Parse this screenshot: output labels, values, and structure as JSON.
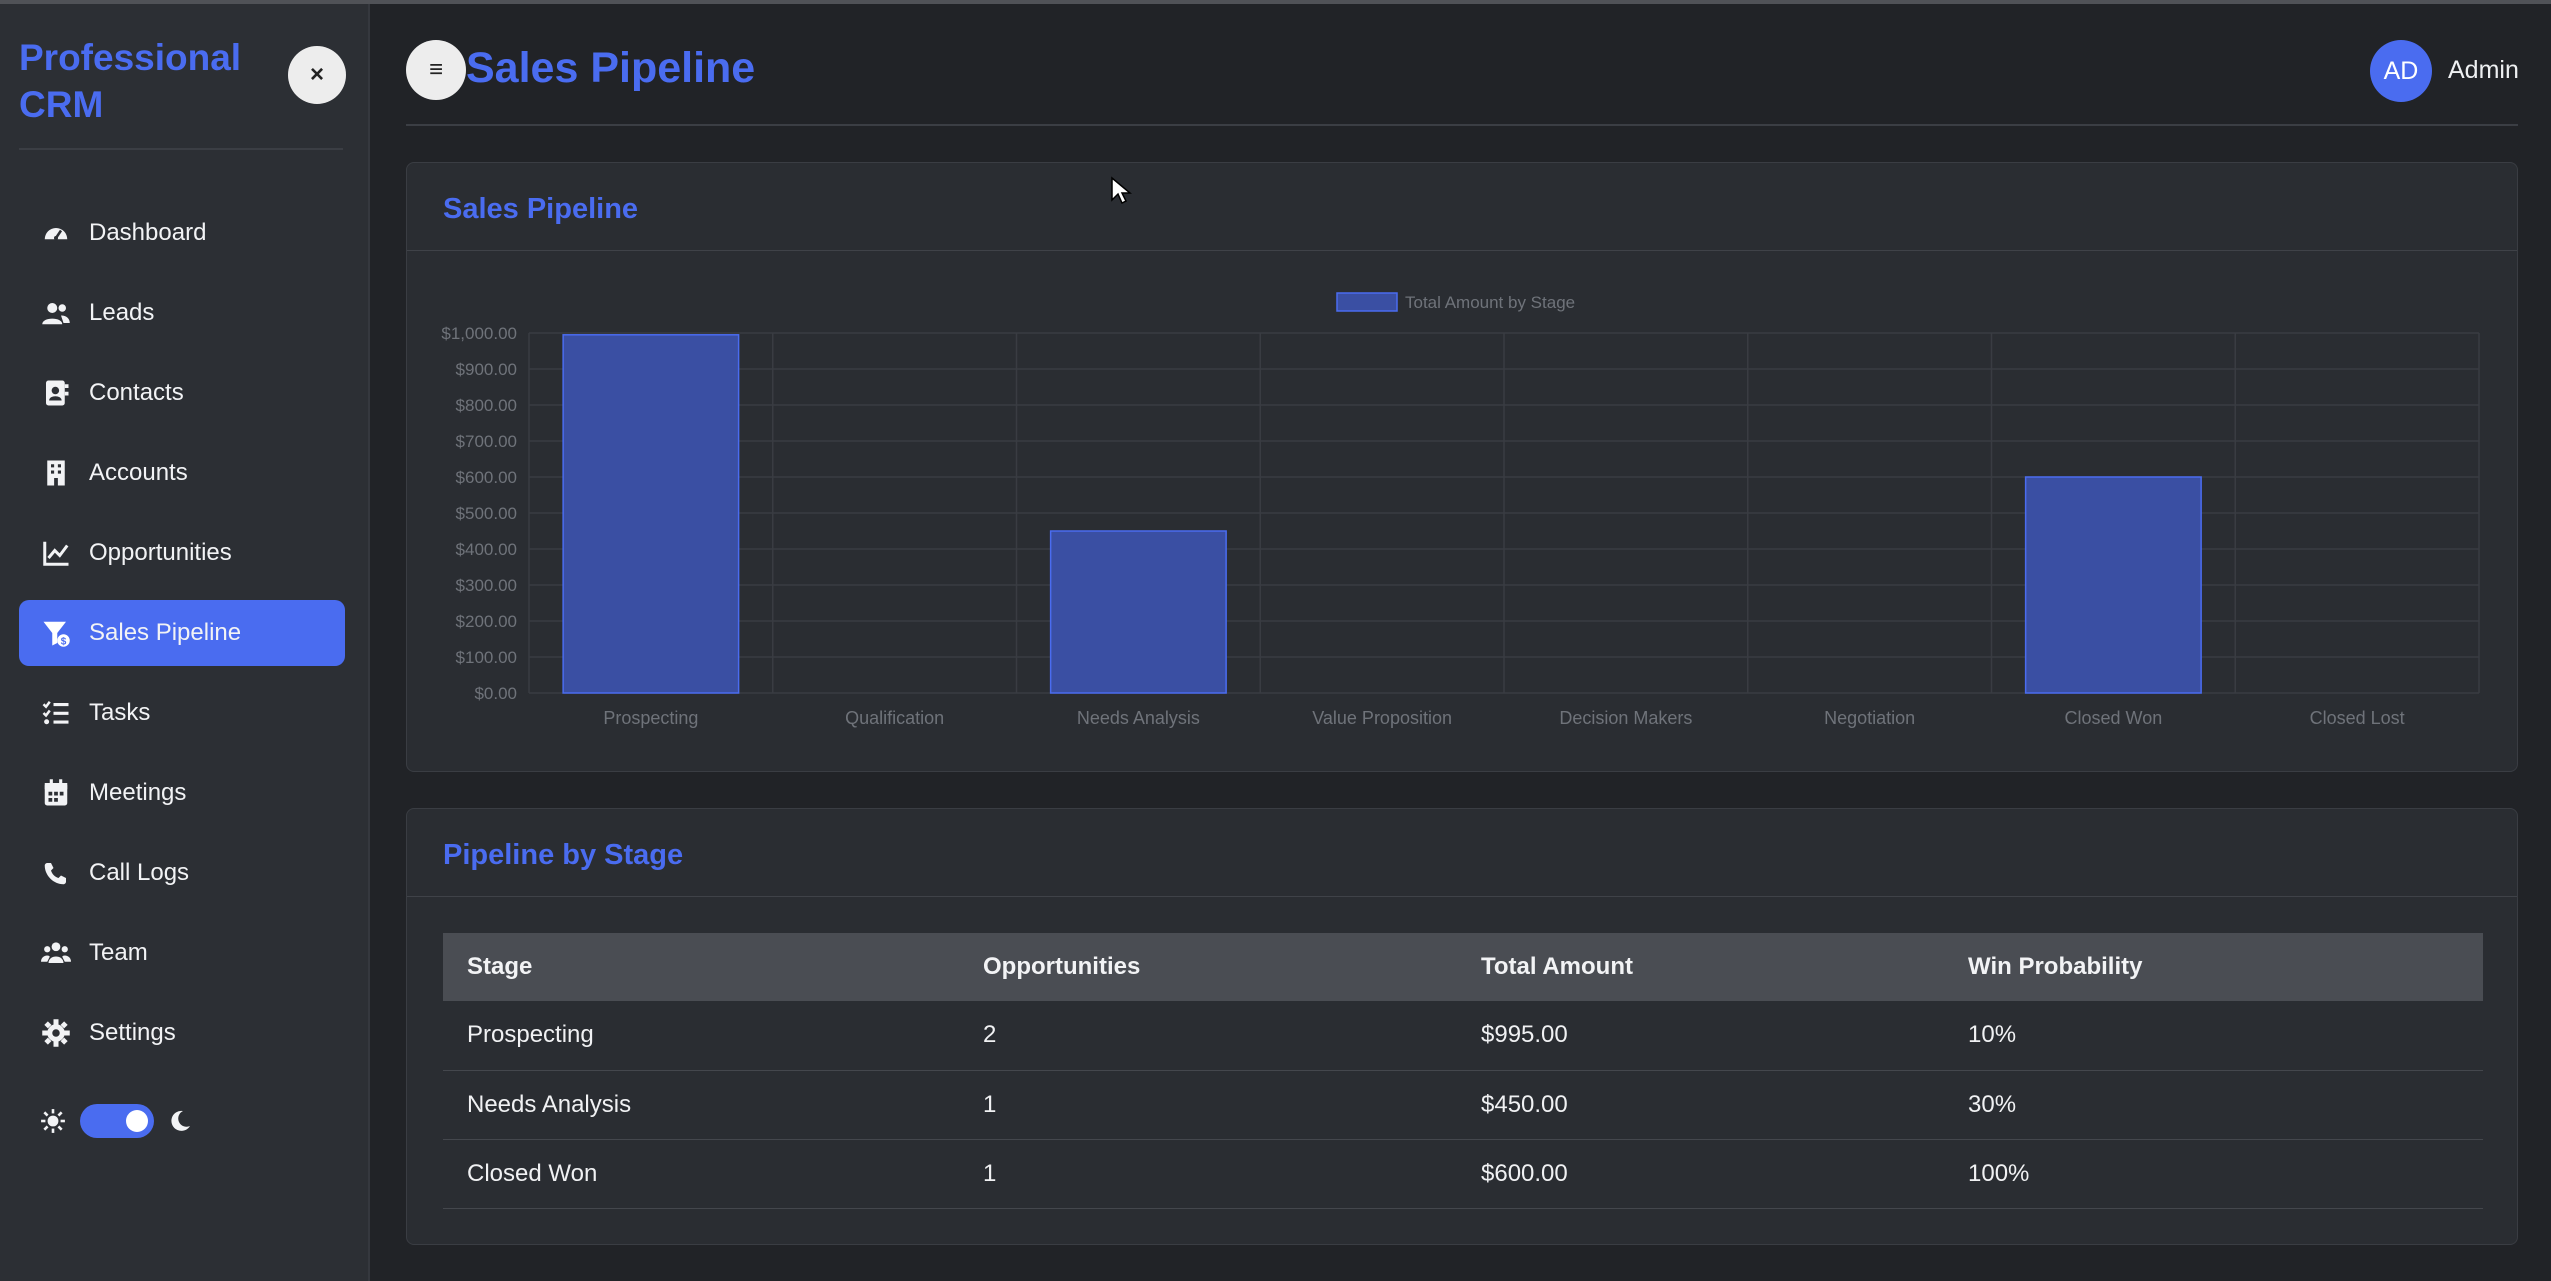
{
  "app": {
    "brand": "Professional CRM"
  },
  "sidebar": {
    "close_label": "×",
    "items": [
      {
        "label": "Dashboard",
        "icon": "dashboard-icon"
      },
      {
        "label": "Leads",
        "icon": "users-icon"
      },
      {
        "label": "Contacts",
        "icon": "address-book-icon"
      },
      {
        "label": "Accounts",
        "icon": "building-icon"
      },
      {
        "label": "Opportunities",
        "icon": "line-chart-icon"
      },
      {
        "label": "Sales Pipeline",
        "icon": "funnel-dollar-icon",
        "active": true
      },
      {
        "label": "Tasks",
        "icon": "tasks-list-icon"
      },
      {
        "label": "Meetings",
        "icon": "calendar-icon"
      },
      {
        "label": "Call Logs",
        "icon": "phone-icon"
      },
      {
        "label": "Team",
        "icon": "team-icon"
      },
      {
        "label": "Settings",
        "icon": "gear-icon"
      }
    ],
    "theme_toggle": {
      "mode": "dark",
      "on": true
    }
  },
  "header": {
    "menu_label": "≡",
    "title": "Sales Pipeline",
    "avatar_initials": "AD",
    "user": "Admin"
  },
  "chart_card": {
    "title": "Sales Pipeline"
  },
  "chart_data": {
    "type": "bar",
    "title": "",
    "legend": "Total Amount by Stage",
    "legend_position": "top-center",
    "categories": [
      "Prospecting",
      "Qualification",
      "Needs Analysis",
      "Value Proposition",
      "Decision Makers",
      "Negotiation",
      "Closed Won",
      "Closed Lost"
    ],
    "series": [
      {
        "name": "Total Amount by Stage",
        "values": [
          995,
          0,
          450,
          0,
          0,
          0,
          600,
          0
        ]
      }
    ],
    "ylim": [
      0,
      1000
    ],
    "yticks": [
      "$0.00",
      "$100.00",
      "$200.00",
      "$300.00",
      "$400.00",
      "$500.00",
      "$600.00",
      "$700.00",
      "$800.00",
      "$900.00",
      "$1,000.00"
    ],
    "grid": true,
    "colors": {
      "bar": "#3a4fa3",
      "bar_border": "#4a6cf0"
    }
  },
  "table_card": {
    "title": "Pipeline by Stage",
    "headers": [
      "Stage",
      "Opportunities",
      "Total Amount",
      "Win Probability"
    ],
    "rows": [
      [
        "Prospecting",
        "2",
        "$995.00",
        "10%"
      ],
      [
        "Needs Analysis",
        "1",
        "$450.00",
        "30%"
      ],
      [
        "Closed Won",
        "1",
        "$600.00",
        "100%"
      ]
    ]
  },
  "colors": {
    "accent": "#4a6cf0",
    "background": "#212327",
    "sidebar": "#2c2f34",
    "card": "#2a2d32"
  }
}
